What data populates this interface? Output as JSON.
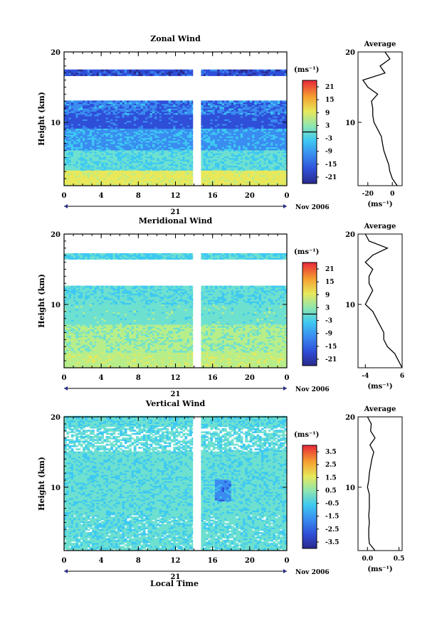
{
  "figure": {
    "date_label": "Nov 2006",
    "day_label": "21",
    "xlabel": "Local Time",
    "unit_label": "(ms⁻¹)"
  },
  "chart_data": [
    {
      "type": "heatmap",
      "title": "Zonal Wind",
      "ylabel": "Height (km)",
      "xlabel": "Local Time",
      "x_ticks": [
        "0",
        "4",
        "8",
        "12",
        "16",
        "20",
        "0"
      ],
      "y_ticks": [
        "10",
        "20"
      ],
      "xlim": [
        0,
        24
      ],
      "ylim": [
        1,
        20
      ],
      "colorbar": {
        "unit": "(ms⁻¹)",
        "ticks": [
          "21",
          "15",
          "9",
          "3",
          "-3",
          "-9",
          "-15",
          "-21"
        ],
        "range": [
          -24,
          24
        ],
        "contour_at": 0
      },
      "profile": {
        "title": "Average",
        "x_ticks": [
          "-20",
          "0"
        ],
        "xlim": [
          -28,
          8
        ],
        "xlabel": "(ms⁻¹)",
        "y_ticks": [
          "10",
          "20"
        ],
        "height_km": [
          1,
          2,
          3,
          4,
          5,
          6,
          7,
          8,
          9,
          10,
          11,
          12,
          13,
          14,
          15,
          16,
          17,
          18,
          19,
          20
        ],
        "values": [
          4,
          0,
          -2,
          -3,
          -5,
          -7,
          -8,
          -9,
          -12,
          -15,
          -16,
          -16,
          -17,
          -12,
          -20,
          -24,
          -6,
          -10,
          -2,
          -6
        ]
      }
    },
    {
      "type": "heatmap",
      "title": "Meridional Wind",
      "ylabel": "Height (km)",
      "xlabel": "Local Time",
      "x_ticks": [
        "0",
        "4",
        "8",
        "12",
        "16",
        "20",
        "0"
      ],
      "y_ticks": [
        "10",
        "20"
      ],
      "xlim": [
        0,
        24
      ],
      "ylim": [
        1,
        20
      ],
      "colorbar": {
        "unit": "(ms⁻¹)",
        "ticks": [
          "21",
          "15",
          "9",
          "3",
          "-3",
          "-9",
          "-15",
          "-21"
        ],
        "range": [
          -24,
          24
        ],
        "contour_at": 0
      },
      "profile": {
        "title": "Average",
        "x_ticks": [
          "-4",
          "6"
        ],
        "xlim": [
          -6,
          6
        ],
        "xlabel": "(ms⁻¹)",
        "y_ticks": [
          "10",
          "20"
        ],
        "height_km": [
          1,
          2,
          3,
          4,
          5,
          6,
          7,
          8,
          9,
          10,
          11,
          12,
          13,
          14,
          15,
          16,
          17,
          18,
          19,
          20
        ],
        "values": [
          6,
          5,
          4,
          2,
          1,
          1,
          0,
          -1,
          -2,
          -4,
          -3,
          -2,
          -3,
          -3,
          -2,
          -4,
          -2,
          2,
          -3,
          -4
        ]
      }
    },
    {
      "type": "heatmap",
      "title": "Vertical Wind",
      "ylabel": "Height (km)",
      "xlabel": "Local Time",
      "x_ticks": [
        "0",
        "4",
        "8",
        "12",
        "16",
        "20",
        "0"
      ],
      "y_ticks": [
        "10",
        "20"
      ],
      "xlim": [
        0,
        24
      ],
      "ylim": [
        1,
        20
      ],
      "colorbar": {
        "unit": "(ms⁻¹)",
        "ticks": [
          "3.5",
          "2.5",
          "1.5",
          "0.5",
          "-0.5",
          "-1.5",
          "-2.5",
          "-3.5"
        ],
        "range": [
          -4,
          4
        ],
        "contour_at": null
      },
      "profile": {
        "title": "Average",
        "x_ticks": [
          "0.0",
          "0.5"
        ],
        "xlim": [
          -0.15,
          0.55
        ],
        "xlabel": "(ms⁻¹)",
        "y_ticks": [
          "10",
          "20"
        ],
        "height_km": [
          1,
          2,
          3,
          4,
          5,
          6,
          7,
          8,
          9,
          10,
          11,
          12,
          13,
          14,
          15,
          16,
          17,
          18,
          19,
          20
        ],
        "values": [
          0.12,
          0.03,
          0.02,
          0.02,
          0.03,
          0.02,
          0.03,
          0.03,
          0.03,
          0.0,
          0.02,
          0.03,
          0.05,
          0.07,
          0.1,
          0.04,
          0.12,
          0.05,
          0.06,
          0.0
        ]
      }
    }
  ]
}
